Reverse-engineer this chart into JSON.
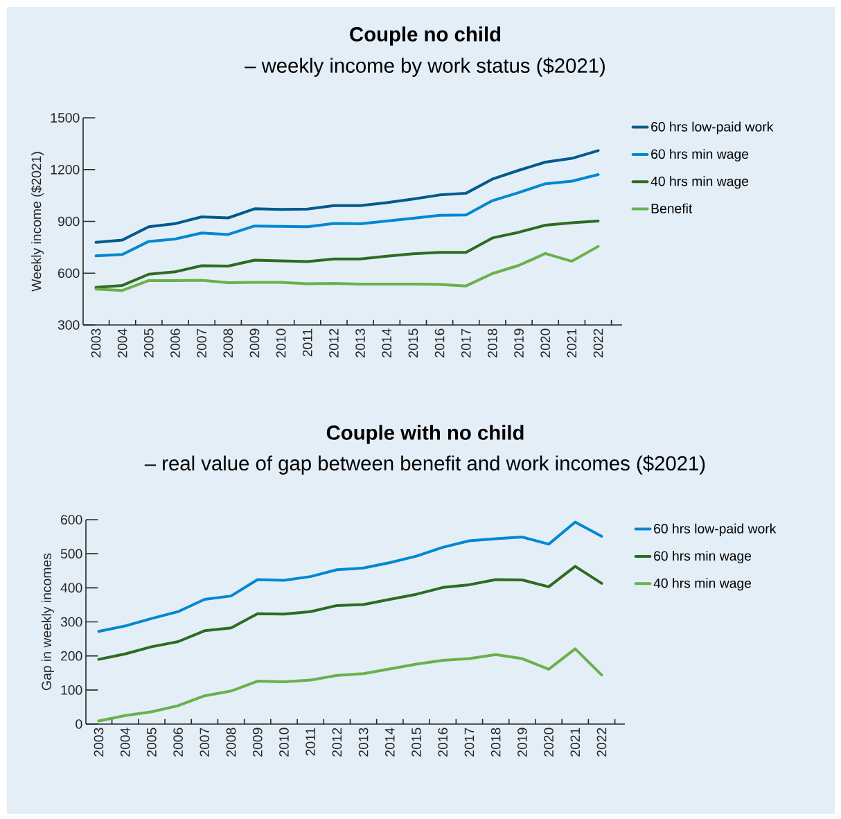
{
  "chart_data": [
    {
      "type": "line",
      "title": "Couple no child",
      "subtitle": "– weekly income by work status ($2021)",
      "ylabel": "Weekly income ($2021)",
      "legend": "right",
      "line_style": "solid",
      "categories": [
        "2003",
        "2004",
        "2005",
        "2006",
        "2007",
        "2008",
        "2009",
        "2010",
        "2011",
        "2012",
        "2013",
        "2014",
        "2015",
        "2016",
        "2017",
        "2018",
        "2019",
        "2020",
        "2021",
        "2022"
      ],
      "ylim": [
        300,
        1500
      ],
      "yticks": [
        300,
        600,
        900,
        1200,
        1500
      ],
      "series": [
        {
          "name": "60 hrs low-paid work",
          "color": "#005a8c",
          "values": [
            779,
            792,
            869,
            887,
            926,
            920,
            973,
            969,
            971,
            991,
            991,
            1008,
            1029,
            1053,
            1063,
            1145,
            1196,
            1243,
            1265,
            1310
          ]
        },
        {
          "name": "60 hrs min wage",
          "color": "#0088d1",
          "values": [
            700,
            708,
            784,
            798,
            833,
            824,
            873,
            871,
            869,
            888,
            886,
            902,
            918,
            935,
            937,
            1020,
            1067,
            1118,
            1133,
            1171
          ]
        },
        {
          "name": "40 hrs min wage",
          "color": "#2e6b22",
          "values": [
            518,
            529,
            594,
            608,
            643,
            641,
            675,
            671,
            667,
            682,
            682,
            698,
            712,
            720,
            720,
            804,
            837,
            878,
            892,
            902
          ]
        },
        {
          "name": "Benefit",
          "color": "#6ab04c",
          "values": [
            508,
            500,
            557,
            557,
            559,
            545,
            547,
            547,
            539,
            541,
            537,
            537,
            537,
            535,
            526,
            598,
            645,
            714,
            669,
            755
          ]
        }
      ]
    },
    {
      "type": "line",
      "title": "Couple with no child",
      "subtitle": "– real value of gap between benefit and work incomes ($2021)",
      "ylabel": "Gap in weekly incomes",
      "legend": "right",
      "line_style": "solid",
      "categories": [
        "2003",
        "2004",
        "2005",
        "2006",
        "2007",
        "2008",
        "2009",
        "2010",
        "2011",
        "2012",
        "2013",
        "2014",
        "2015",
        "2016",
        "2017",
        "2018",
        "2019",
        "2020",
        "2021",
        "2022"
      ],
      "ylim": [
        0,
        600
      ],
      "yticks": [
        0,
        100,
        200,
        300,
        400,
        500,
        600
      ],
      "series": [
        {
          "name": "60 hrs low-paid work",
          "color": "#0088d1",
          "values": [
            272,
            288,
            310,
            330,
            366,
            376,
            424,
            422,
            433,
            453,
            458,
            474,
            493,
            519,
            538,
            544,
            549,
            528,
            593,
            551
          ]
        },
        {
          "name": "60 hrs min wage",
          "color": "#2e6b22",
          "values": [
            190,
            206,
            227,
            242,
            274,
            282,
            324,
            323,
            330,
            348,
            351,
            366,
            381,
            401,
            409,
            424,
            423,
            403,
            463,
            413
          ]
        },
        {
          "name": "40 hrs min wage",
          "color": "#6ab04c",
          "values": [
            9,
            25,
            36,
            54,
            83,
            97,
            126,
            124,
            129,
            143,
            148,
            162,
            176,
            187,
            192,
            204,
            192,
            161,
            221,
            144
          ]
        }
      ]
    }
  ]
}
